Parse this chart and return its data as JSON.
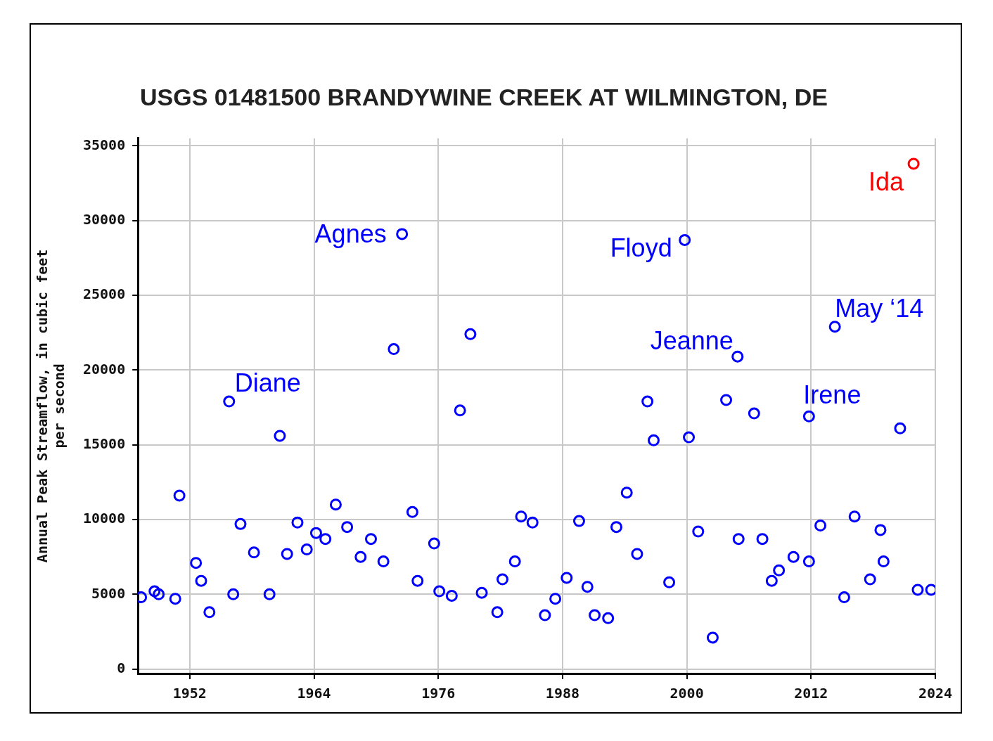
{
  "chart_data": {
    "type": "scatter",
    "title": "USGS 01481500 BRANDYWINE CREEK AT WILMINGTON, DE",
    "ylabel": "Annual Peak Streamflow, in cubic feet per second",
    "xlim": [
      1947,
      2024
    ],
    "xticks": [
      1952,
      1964,
      1976,
      1988,
      2000,
      2012,
      2024
    ],
    "ylim": [
      -300,
      35500
    ],
    "yticks": [
      0,
      5000,
      10000,
      15000,
      20000,
      25000,
      30000,
      35000
    ],
    "grid": true,
    "legend": false,
    "marker": "circle",
    "series": [
      {
        "color": "#0000ff",
        "x": [
          1947.3,
          1948.6,
          1949.0,
          1950.6,
          1951.0,
          1952.6,
          1953.1,
          1953.9,
          1955.8,
          1956.2,
          1956.9,
          1958.2,
          1959.7,
          1960.7,
          1961.4,
          1962.4,
          1963.3,
          1964.2,
          1965.1,
          1966.1,
          1967.2,
          1968.5,
          1969.5,
          1970.7,
          1971.7,
          1972.5,
          1973.5,
          1974.0,
          1975.6,
          1976.1,
          1977.3,
          1978.1,
          1979.1,
          1980.2,
          1981.7,
          1982.2,
          1983.4,
          1984.0,
          1985.1,
          1986.3,
          1987.3,
          1988.4,
          1989.6,
          1990.4,
          1991.1,
          1992.4,
          1993.2,
          1994.2,
          1995.2,
          1996.2,
          1996.8,
          1998.3,
          1999.8,
          2000.2,
          2001.1,
          2002.5,
          2003.8,
          2004.9,
          2005.0,
          2006.5,
          2007.3,
          2008.2,
          2008.9,
          2010.3,
          2011.8,
          2011.8,
          2012.9,
          2014.3,
          2015.2,
          2016.2,
          2017.7,
          2018.7,
          2019.0,
          2020.6,
          2022.3,
          2023.6
        ],
        "values": [
          4800,
          5200,
          5000,
          4700,
          11600,
          7100,
          5900,
          3800,
          17900,
          5000,
          9700,
          7800,
          5000,
          15600,
          7700,
          9800,
          8000,
          9100,
          8700,
          11000,
          9500,
          7500,
          8700,
          7200,
          21400,
          29100,
          10500,
          5900,
          8400,
          5200,
          4900,
          17300,
          22400,
          5100,
          3800,
          6000,
          7200,
          10200,
          9800,
          3600,
          4700,
          6100,
          9900,
          5500,
          3600,
          3400,
          9500,
          11800,
          7700,
          17900,
          15300,
          5800,
          28700,
          15500,
          9200,
          2100,
          18000,
          20900,
          8700,
          17100,
          8700,
          5900,
          6600,
          7500,
          7200,
          16900,
          9600,
          22900,
          4800,
          10200,
          6000,
          9300,
          7200,
          16100,
          5300,
          5300
        ]
      },
      {
        "color": "#ff0000",
        "x": [
          2021.9
        ],
        "values": [
          33800
        ]
      }
    ],
    "annotations": [
      {
        "text": "Diane",
        "x": 1955.8,
        "y": 17900
      },
      {
        "text": "Agnes",
        "x": 1972.5,
        "y": 29100
      },
      {
        "text": "Floyd",
        "x": 1999.8,
        "y": 28700
      },
      {
        "text": "Jeanne",
        "x": 2004.9,
        "y": 20900
      },
      {
        "text": "Irene",
        "x": 2011.8,
        "y": 16900
      },
      {
        "text": "May ‘14",
        "x": 2014.3,
        "y": 22900
      },
      {
        "text": "Ida",
        "x": 2021.9,
        "y": 33800
      }
    ]
  }
}
